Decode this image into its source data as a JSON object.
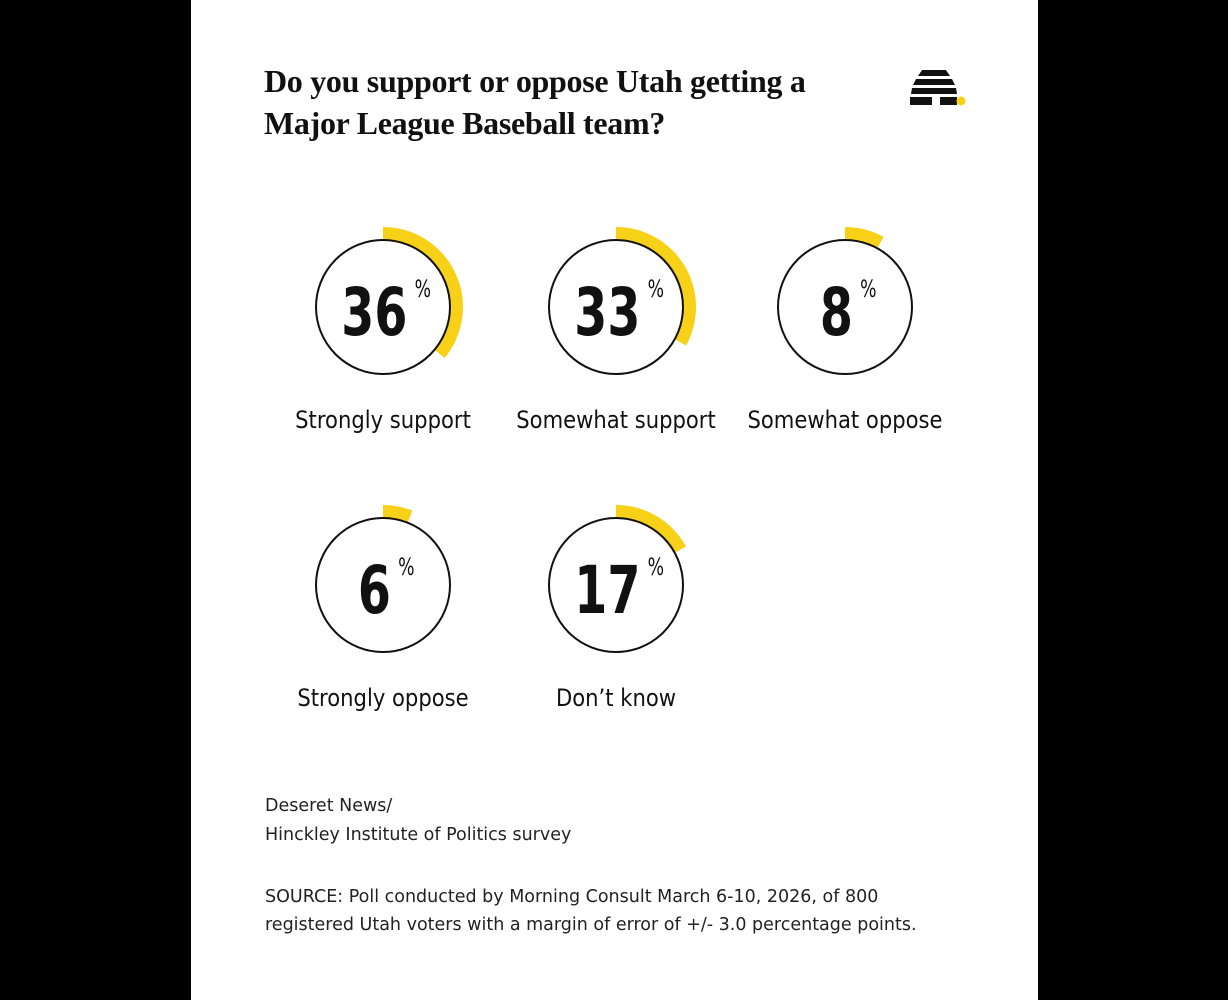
{
  "chart_data": {
    "type": "gauge",
    "title": "Do you support or oppose Utah getting a Major League Baseball team?",
    "categories": [
      "Strongly support",
      "Somewhat support",
      "Somewhat oppose",
      "Strongly oppose",
      "Don’t know"
    ],
    "values": [
      36,
      33,
      8,
      6,
      17
    ],
    "unit": "%",
    "color": "#f7d117"
  },
  "footer": {
    "credit": [
      "Deseret News/",
      "Hinckley Institute of Politics survey"
    ],
    "source": [
      "SOURCE: Poll conducted by Morning Consult March 6-10, 2026, of 800",
      "registered Utah voters with a margin of error of +/- 3.0 percentage points."
    ]
  }
}
